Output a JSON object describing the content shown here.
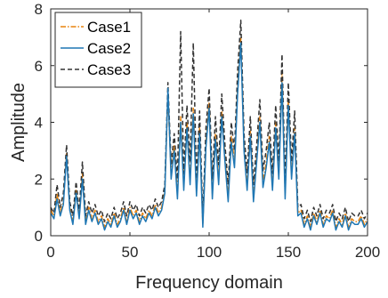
{
  "chart_data": {
    "type": "line",
    "xlabel": "Frequency domain",
    "ylabel": "Amplitude",
    "xlim": [
      0,
      200
    ],
    "ylim": [
      0,
      8
    ],
    "xticks": [
      0,
      50,
      100,
      150,
      200
    ],
    "yticks": [
      0,
      2,
      4,
      6,
      8
    ],
    "grid": false,
    "legend_location": "top-left",
    "series": [
      {
        "name": "Case1",
        "color": "#e8820c",
        "style": "dash-dot",
        "x": [
          0,
          2,
          4,
          6,
          8,
          10,
          12,
          14,
          16,
          18,
          20,
          22,
          24,
          26,
          28,
          30,
          32,
          34,
          36,
          38,
          40,
          42,
          44,
          46,
          48,
          50,
          52,
          54,
          56,
          58,
          60,
          62,
          64,
          66,
          68,
          70,
          72,
          74,
          76,
          78,
          80,
          82,
          84,
          86,
          88,
          90,
          92,
          94,
          96,
          98,
          100,
          102,
          104,
          106,
          108,
          110,
          112,
          114,
          116,
          118,
          120,
          122,
          124,
          126,
          128,
          130,
          132,
          134,
          136,
          138,
          140,
          142,
          144,
          146,
          148,
          150,
          152,
          154,
          156,
          158,
          160,
          162,
          164,
          166,
          168,
          170,
          172,
          174,
          176,
          178,
          180,
          182,
          184,
          186,
          188,
          190,
          192,
          194,
          196,
          198,
          200
        ],
        "values": [
          0.9,
          0.7,
          1.5,
          0.8,
          1.2,
          2.9,
          1.0,
          0.5,
          1.6,
          0.7,
          2.2,
          0.5,
          1.0,
          0.6,
          0.9,
          0.5,
          0.7,
          0.3,
          0.6,
          0.4,
          0.8,
          0.4,
          0.6,
          1.0,
          0.5,
          1.0,
          0.7,
          0.9,
          0.5,
          0.8,
          0.6,
          0.9,
          0.7,
          1.1,
          0.8,
          1.0,
          1.6,
          5.0,
          2.2,
          3.2,
          1.5,
          4.2,
          1.8,
          4.0,
          2.0,
          4.5,
          1.6,
          3.8,
          0.4,
          3.3,
          4.7,
          1.5,
          3.6,
          2.0,
          4.4,
          2.8,
          1.4,
          3.5,
          2.6,
          5.2,
          7.0,
          3.2,
          1.8,
          3.7,
          1.4,
          2.8,
          4.2,
          1.9,
          2.6,
          3.5,
          1.8,
          4.0,
          2.2,
          5.7,
          1.5,
          4.8,
          2.2,
          3.8,
          0.8,
          0.9,
          0.4,
          0.7,
          0.3,
          0.8,
          0.5,
          0.9,
          0.4,
          0.7,
          0.6,
          0.9,
          0.3,
          0.6,
          0.4,
          0.8,
          0.3,
          0.6,
          0.5,
          0.5,
          0.7,
          0.4,
          0.6
        ]
      },
      {
        "name": "Case2",
        "color": "#1f77b4",
        "style": "solid",
        "x": [
          0,
          2,
          4,
          6,
          8,
          10,
          12,
          14,
          16,
          18,
          20,
          22,
          24,
          26,
          28,
          30,
          32,
          34,
          36,
          38,
          40,
          42,
          44,
          46,
          48,
          50,
          52,
          54,
          56,
          58,
          60,
          62,
          64,
          66,
          68,
          70,
          72,
          74,
          76,
          78,
          80,
          82,
          84,
          86,
          88,
          90,
          92,
          94,
          96,
          98,
          100,
          102,
          104,
          106,
          108,
          110,
          112,
          114,
          116,
          118,
          120,
          122,
          124,
          126,
          128,
          130,
          132,
          134,
          136,
          138,
          140,
          142,
          144,
          146,
          148,
          150,
          152,
          154,
          156,
          158,
          160,
          162,
          164,
          166,
          168,
          170,
          172,
          174,
          176,
          178,
          180,
          182,
          184,
          186,
          188,
          190,
          192,
          194,
          196,
          198,
          200
        ],
        "values": [
          0.8,
          0.6,
          1.3,
          0.7,
          1.1,
          2.8,
          0.9,
          0.4,
          1.5,
          0.6,
          2.0,
          0.4,
          0.9,
          0.5,
          0.8,
          0.4,
          0.6,
          0.2,
          0.5,
          0.3,
          0.7,
          0.3,
          0.5,
          0.9,
          0.4,
          0.9,
          0.6,
          0.8,
          0.4,
          0.7,
          0.5,
          0.8,
          0.6,
          1.0,
          0.7,
          0.9,
          1.5,
          5.2,
          2.0,
          3.0,
          1.3,
          4.0,
          1.6,
          3.8,
          1.8,
          4.3,
          1.4,
          3.6,
          0.3,
          3.1,
          4.5,
          1.3,
          3.4,
          1.8,
          4.2,
          2.6,
          1.2,
          3.3,
          2.4,
          5.0,
          6.8,
          3.0,
          1.6,
          3.5,
          1.2,
          2.6,
          4.0,
          1.7,
          2.4,
          3.3,
          1.6,
          3.8,
          2.0,
          5.4,
          1.3,
          4.6,
          2.0,
          3.6,
          0.7,
          0.8,
          0.3,
          0.6,
          0.2,
          0.7,
          0.4,
          0.8,
          0.3,
          0.6,
          0.5,
          0.8,
          0.2,
          0.5,
          0.3,
          0.7,
          0.2,
          0.5,
          0.4,
          0.4,
          0.6,
          0.3,
          0.5
        ]
      },
      {
        "name": "Case3",
        "color": "#333333",
        "style": "dashed",
        "x": [
          0,
          2,
          4,
          6,
          8,
          10,
          12,
          14,
          16,
          18,
          20,
          22,
          24,
          26,
          28,
          30,
          32,
          34,
          36,
          38,
          40,
          42,
          44,
          46,
          48,
          50,
          52,
          54,
          56,
          58,
          60,
          62,
          64,
          66,
          68,
          70,
          72,
          74,
          76,
          78,
          80,
          82,
          84,
          86,
          88,
          90,
          92,
          94,
          96,
          98,
          100,
          102,
          104,
          106,
          108,
          110,
          112,
          114,
          116,
          118,
          120,
          122,
          124,
          126,
          128,
          130,
          132,
          134,
          136,
          138,
          140,
          142,
          144,
          146,
          148,
          150,
          152,
          154,
          156,
          158,
          160,
          162,
          164,
          166,
          168,
          170,
          172,
          174,
          176,
          178,
          180,
          182,
          184,
          186,
          188,
          190,
          192,
          194,
          196,
          198,
          200
        ],
        "values": [
          1.0,
          0.8,
          1.8,
          1.0,
          1.5,
          3.2,
          1.2,
          0.7,
          1.9,
          0.9,
          2.6,
          0.7,
          1.2,
          0.8,
          1.1,
          0.7,
          0.9,
          0.5,
          0.8,
          0.6,
          1.0,
          0.6,
          0.8,
          1.2,
          0.7,
          1.2,
          0.9,
          1.1,
          0.7,
          1.0,
          0.8,
          1.1,
          0.9,
          1.3,
          1.0,
          1.2,
          1.8,
          5.4,
          2.5,
          3.6,
          2.0,
          7.2,
          2.2,
          4.6,
          2.6,
          6.8,
          2.0,
          4.4,
          0.6,
          3.8,
          5.2,
          2.0,
          4.2,
          2.5,
          5.0,
          3.2,
          1.8,
          4.0,
          3.0,
          5.8,
          7.6,
          3.6,
          2.2,
          4.2,
          1.8,
          3.2,
          4.8,
          2.3,
          3.0,
          4.0,
          2.2,
          4.6,
          2.6,
          6.4,
          1.9,
          5.4,
          2.6,
          4.4,
          1.0,
          1.1,
          0.6,
          0.9,
          0.5,
          1.0,
          0.7,
          1.1,
          0.6,
          0.9,
          0.8,
          1.1,
          0.5,
          0.8,
          0.6,
          1.0,
          0.5,
          0.8,
          0.7,
          0.7,
          0.9,
          0.6,
          0.8
        ]
      }
    ]
  }
}
